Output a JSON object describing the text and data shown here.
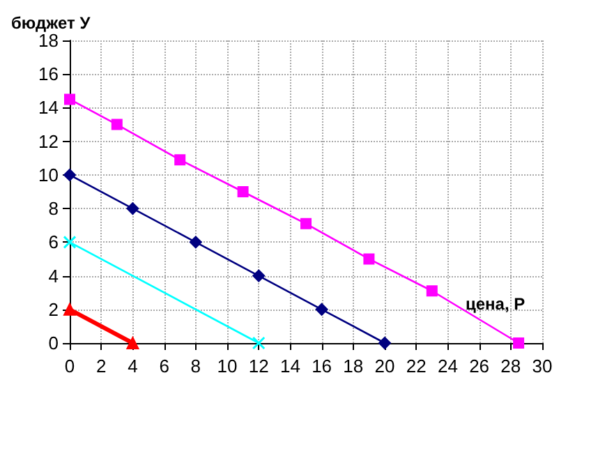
{
  "chart_data": {
    "type": "line",
    "xlabel": "цена, P",
    "ylabel": "бюджет У",
    "xlim": [
      0,
      30
    ],
    "xticks": [
      0,
      2,
      4,
      6,
      8,
      10,
      12,
      14,
      16,
      18,
      20,
      22,
      24,
      26,
      28,
      30
    ],
    "ylim": [
      0,
      18
    ],
    "yticks": [
      0,
      2,
      4,
      6,
      8,
      10,
      12,
      14,
      16,
      18
    ],
    "grid": true,
    "series": [
      {
        "color": "#ff00ff",
        "marker": "square",
        "x": [
          0,
          3,
          7,
          11,
          15,
          19,
          23,
          28.5
        ],
        "values": [
          14.5,
          13,
          10.9,
          9,
          7.1,
          5,
          3.1,
          0
        ]
      },
      {
        "color": "#000080",
        "marker": "diamond",
        "x": [
          0,
          4,
          8,
          12,
          16,
          20
        ],
        "values": [
          10,
          8,
          6,
          4,
          2,
          0
        ]
      },
      {
        "color": "#00ffff",
        "marker": "cross",
        "x": [
          0,
          12
        ],
        "values": [
          6,
          0
        ]
      },
      {
        "color": "#ff0000",
        "marker": "triangle",
        "x": [
          0,
          4
        ],
        "values": [
          2,
          0
        ]
      }
    ]
  }
}
